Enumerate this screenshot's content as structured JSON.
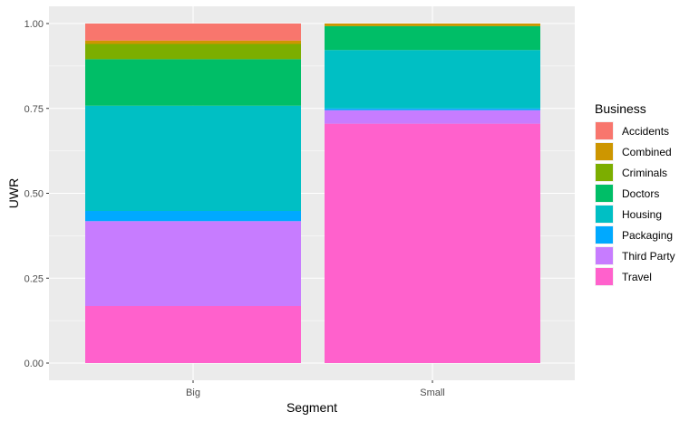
{
  "chart_data": {
    "type": "bar",
    "stacked": true,
    "categories": [
      "Big",
      "Small"
    ],
    "series": [
      {
        "name": "Travel",
        "color": "#FF61CC",
        "values": [
          0.168,
          0.705
        ]
      },
      {
        "name": "Third Party",
        "color": "#C77CFF",
        "values": [
          0.25,
          0.04
        ]
      },
      {
        "name": "Packaging",
        "color": "#00A9FF",
        "values": [
          0.03,
          0.005
        ]
      },
      {
        "name": "Housing",
        "color": "#00BFC4",
        "values": [
          0.31,
          0.172
        ]
      },
      {
        "name": "Doctors",
        "color": "#00BE67",
        "values": [
          0.137,
          0.07
        ]
      },
      {
        "name": "Criminals",
        "color": "#7CAE00",
        "values": [
          0.045,
          0.001
        ]
      },
      {
        "name": "Combined",
        "color": "#CD9600",
        "values": [
          0.01,
          0.007
        ]
      },
      {
        "name": "Accidents",
        "color": "#F8766D",
        "values": [
          0.05,
          0.0
        ]
      }
    ],
    "ylim": [
      0,
      1
    ],
    "yticks": [
      "0.00",
      "0.25",
      "0.50",
      "0.75",
      "1.00"
    ],
    "ytick_values": [
      0,
      0.25,
      0.5,
      0.75,
      1.0
    ],
    "xlabel": "Segment",
    "ylabel": "UWR",
    "legend_title": "Business",
    "legend_order": [
      "Accidents",
      "Combined",
      "Criminals",
      "Doctors",
      "Housing",
      "Packaging",
      "Third Party",
      "Travel"
    ],
    "legend_position": "right",
    "grid": true
  }
}
